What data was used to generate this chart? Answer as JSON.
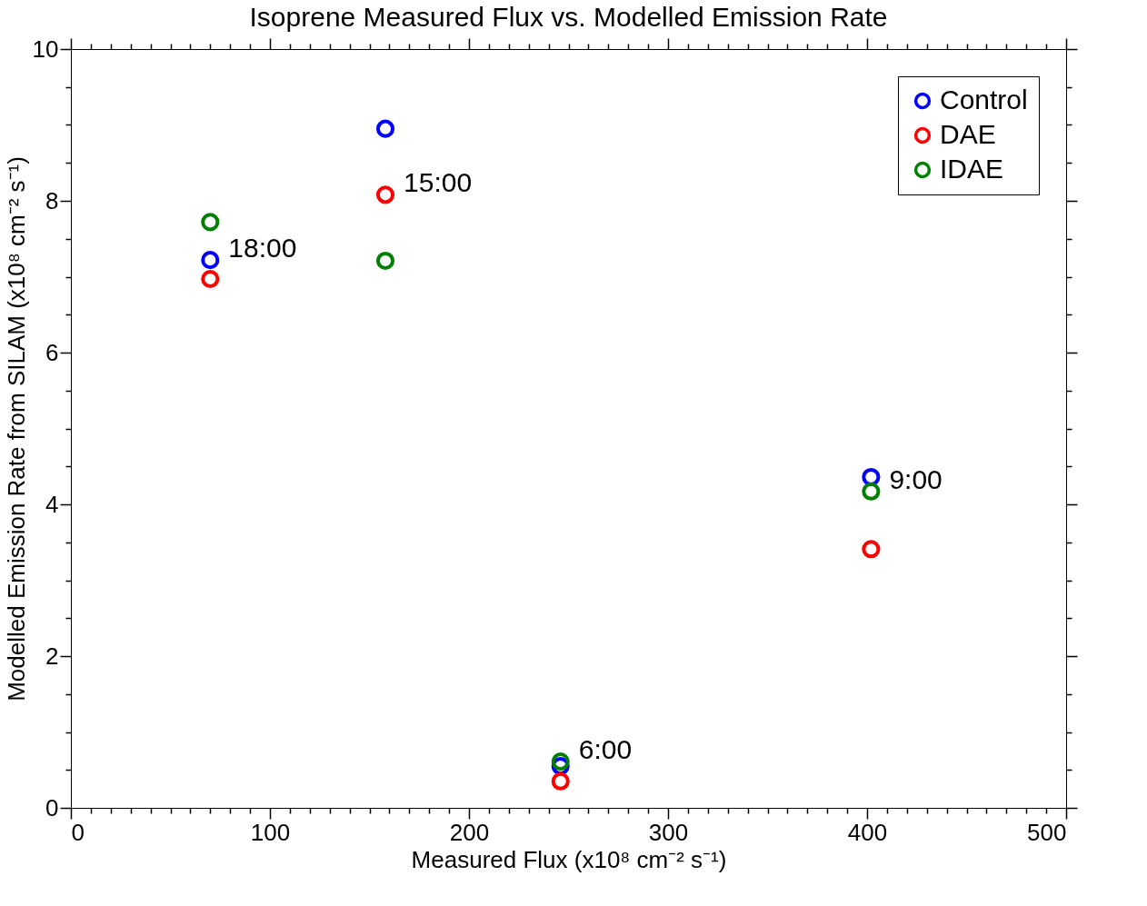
{
  "chart_data": {
    "type": "scatter",
    "title": "Isoprene Measured Flux vs. Modelled Emission Rate",
    "xlabel": "Measured Flux (x10⁸ cm⁻² s⁻¹)",
    "ylabel": "Modelled Emission Rate from SILAM (x10⁸ cm⁻² s⁻¹)",
    "series": [
      {
        "name": "Control",
        "color": "#0000ff",
        "x": [
          70,
          158,
          246,
          402
        ],
        "values": [
          7.22,
          8.95,
          0.55,
          4.36
        ]
      },
      {
        "name": "DAE",
        "color": "#ff0000",
        "x": [
          70,
          158,
          246,
          402
        ],
        "values": [
          6.97,
          8.08,
          0.35,
          3.41
        ]
      },
      {
        "name": "IDAE",
        "color": "#008000",
        "x": [
          70,
          158,
          246,
          402
        ],
        "values": [
          7.72,
          7.21,
          0.61,
          4.17
        ]
      }
    ],
    "annotations": [
      {
        "text": "18:00",
        "x": 70,
        "y": 7.22
      },
      {
        "text": "15:00",
        "x": 158,
        "y": 8.08
      },
      {
        "text": "6:00",
        "x": 246,
        "y": 0.61
      },
      {
        "text": "9:00",
        "x": 402,
        "y": 4.17
      }
    ],
    "xlim": [
      0,
      500
    ],
    "ylim": [
      0,
      10
    ],
    "xticks": [
      0,
      {
        "value": 10,
        "label": null
      },
      {
        "value": 20,
        "label": null
      },
      {
        "value": 30,
        "label": null
      },
      {
        "value": 40,
        "label": null
      },
      {
        "value": 50,
        "label": null
      },
      {
        "value": 60,
        "label": null
      },
      {
        "value": 70,
        "label": null
      },
      {
        "value": 80,
        "label": null
      },
      {
        "value": 90,
        "label": null
      },
      100,
      {
        "value": 110,
        "label": null
      },
      {
        "value": 120,
        "label": null
      },
      {
        "value": 130,
        "label": null
      },
      {
        "value": 140,
        "label": null
      },
      {
        "value": 150,
        "label": null
      },
      {
        "value": 160,
        "label": null
      },
      {
        "value": 170,
        "label": null
      },
      {
        "value": 180,
        "label": null
      },
      {
        "value": 190,
        "label": null
      },
      200,
      {
        "value": 210,
        "label": null
      },
      {
        "value": 220,
        "label": null
      },
      {
        "value": 230,
        "label": null
      },
      {
        "value": 240,
        "label": null
      },
      {
        "value": 250,
        "label": null
      },
      {
        "value": 260,
        "label": null
      },
      {
        "value": 270,
        "label": null
      },
      {
        "value": 280,
        "label": null
      },
      {
        "value": 290,
        "label": null
      },
      300,
      {
        "value": 310,
        "label": null
      },
      {
        "value": 320,
        "label": null
      },
      {
        "value": 330,
        "label": null
      },
      {
        "value": 340,
        "label": null
      },
      {
        "value": 350,
        "label": null
      },
      {
        "value": 360,
        "label": null
      },
      {
        "value": 370,
        "label": null
      },
      {
        "value": 380,
        "label": null
      },
      {
        "value": 390,
        "label": null
      },
      400,
      {
        "value": 410,
        "label": null
      },
      {
        "value": 420,
        "label": null
      },
      {
        "value": 430,
        "label": null
      },
      {
        "value": 440,
        "label": null
      },
      {
        "value": 450,
        "label": null
      },
      {
        "value": 460,
        "label": null
      },
      {
        "value": 470,
        "label": null
      },
      {
        "value": 480,
        "label": null
      },
      {
        "value": 490,
        "label": null
      },
      500
    ],
    "yticks": [
      0,
      {
        "value": 0.5,
        "label": null
      },
      {
        "value": 1,
        "label": null
      },
      {
        "value": 1.5,
        "label": null
      },
      2,
      {
        "value": 2.5,
        "label": null
      },
      {
        "value": 3,
        "label": null
      },
      {
        "value": 3.5,
        "label": null
      },
      4,
      {
        "value": 4.5,
        "label": null
      },
      {
        "value": 5,
        "label": null
      },
      {
        "value": 5.5,
        "label": null
      },
      6,
      {
        "value": 6.5,
        "label": null
      },
      {
        "value": 7,
        "label": null
      },
      {
        "value": 7.5,
        "label": null
      },
      8,
      {
        "value": 8.5,
        "label": null
      },
      {
        "value": 9,
        "label": null
      },
      {
        "value": 9.5,
        "label": null
      },
      10
    ],
    "grid": false,
    "legend": "top right",
    "marker": "circle"
  }
}
